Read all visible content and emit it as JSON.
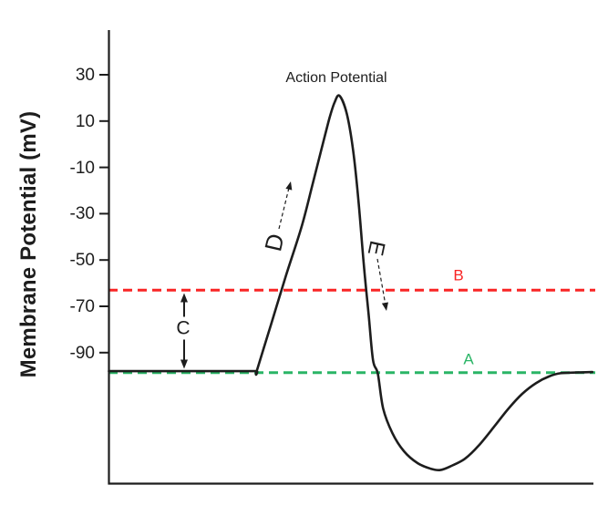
{
  "page": {
    "background": "#ffffff"
  },
  "chart": {
    "title_annotation": "Action Potential",
    "y_axis": {
      "label": "Membrane Potential (mV)",
      "tick_labels": [
        "30",
        "10",
        "-10",
        "-30",
        "-50",
        "-70",
        "-90"
      ]
    },
    "x_axis": {
      "label": "",
      "tick_labels": []
    },
    "labels": {
      "a": "A",
      "b": "B",
      "c": "C",
      "d": "D",
      "e": "E"
    },
    "colors": {
      "curve": "#1d1d1d",
      "axis": "#1d1d1d",
      "text": "#1d1d1d",
      "threshold_line": "#f92525",
      "resting_line": "#2ab566"
    }
  },
  "chart_data": {
    "type": "line",
    "title": "Action Potential",
    "xlabel": "",
    "ylabel": "Membrane Potential (mV)",
    "y_ticks_mv": [
      30,
      10,
      -10,
      -30,
      -50,
      -70,
      -90
    ],
    "ylim_ticks_mv": [
      30,
      -90
    ],
    "grid": false,
    "legend": "none",
    "reference_lines": [
      {
        "id": "B",
        "label": "B",
        "mv": -63,
        "style": "dashed",
        "color": "#f92525"
      },
      {
        "id": "A",
        "label": "A",
        "mv": -98,
        "style": "dashed",
        "color": "#2ab566"
      }
    ],
    "span_marker": {
      "label": "C",
      "from_mv": -98,
      "to_mv": -63,
      "style": "double-headed-arrow"
    },
    "phase_arrows": [
      {
        "label": "D",
        "direction": "up",
        "style": "dashed"
      },
      {
        "label": "E",
        "direction": "down",
        "style": "dashed"
      }
    ],
    "key_values_mv": {
      "resting": -98,
      "threshold": -63,
      "peak": 21,
      "undershoot_min": -141
    },
    "series": [
      {
        "name": "Membrane potential",
        "points_t_mv": [
          [
            0,
            -98
          ],
          [
            14,
            -98
          ],
          [
            28,
            -98
          ],
          [
            30.5,
            -98
          ],
          [
            30.5,
            -98
          ],
          [
            33.5,
            -77.5
          ],
          [
            36.5,
            -57
          ],
          [
            39.7,
            -36.1
          ],
          [
            41.9,
            -18.4
          ],
          [
            43.8,
            -2.7
          ],
          [
            45.5,
            11.1
          ],
          [
            46.6,
            18.2
          ],
          [
            47.6,
            20.9
          ],
          [
            49.1,
            13.1
          ],
          [
            50.4,
            -2.7
          ],
          [
            51.5,
            -24.3
          ],
          [
            52.6,
            -51.9
          ],
          [
            53.6,
            -73.5
          ],
          [
            54.5,
            -93.2
          ],
          [
            55.5,
            -99.1
          ],
          [
            56.6,
            -114.1
          ],
          [
            58.5,
            -124.7
          ],
          [
            60.9,
            -132.6
          ],
          [
            63.7,
            -137.7
          ],
          [
            66.4,
            -140.1
          ],
          [
            68.4,
            -140.7
          ],
          [
            70.7,
            -138.9
          ],
          [
            73.5,
            -135.8
          ],
          [
            76.3,
            -130.2
          ],
          [
            79.5,
            -122
          ],
          [
            82.5,
            -114.1
          ],
          [
            85.3,
            -107.8
          ],
          [
            88.2,
            -103.1
          ],
          [
            90.8,
            -100.3
          ],
          [
            93.2,
            -98.9
          ],
          [
            96.4,
            -98.6
          ],
          [
            99.8,
            -98.4
          ]
        ]
      }
    ]
  }
}
